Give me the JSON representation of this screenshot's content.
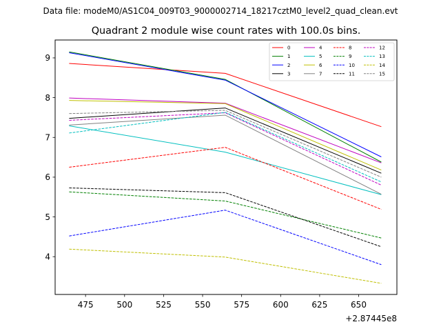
{
  "suptitle": "Data file: modeM0/AS1C04_009T03_9000002714_18217cztM0_level2_quad_clean.evt",
  "chart_data": {
    "type": "line",
    "title": "Quadrant 2 module wise count rates with 100.0s bins.",
    "xlabel": "",
    "ylabel": "",
    "x_offset_label": "+2.87445e8",
    "xlim": [
      455.5,
      674.5
    ],
    "ylim": [
      3.05,
      9.45
    ],
    "x_ticks": [
      475,
      500,
      525,
      550,
      575,
      600,
      625,
      650
    ],
    "y_ticks": [
      4,
      5,
      6,
      7,
      8,
      9
    ],
    "x": [
      464.5,
      564.5,
      664.5
    ],
    "legend_position": "top-right",
    "series": [
      {
        "name": "0",
        "color": "#ff0000",
        "dash": "solid",
        "values": [
          8.86,
          8.61,
          7.27
        ]
      },
      {
        "name": "1",
        "color": "#008000",
        "dash": "solid",
        "values": [
          9.15,
          8.46,
          6.38
        ]
      },
      {
        "name": "2",
        "color": "#0000ff",
        "dash": "solid",
        "values": [
          9.13,
          8.44,
          6.51
        ]
      },
      {
        "name": "3",
        "color": "#000000",
        "dash": "solid",
        "values": [
          7.48,
          7.74,
          6.1
        ]
      },
      {
        "name": "4",
        "color": "#bf00bf",
        "dash": "solid",
        "values": [
          7.99,
          7.86,
          6.36
        ]
      },
      {
        "name": "5",
        "color": "#00bfbf",
        "dash": "solid",
        "values": [
          7.29,
          6.63,
          5.56
        ]
      },
      {
        "name": "6",
        "color": "#bfbf00",
        "dash": "solid",
        "values": [
          7.93,
          7.85,
          6.18
        ]
      },
      {
        "name": "7",
        "color": "#808080",
        "dash": "solid",
        "values": [
          7.31,
          7.56,
          5.57
        ]
      },
      {
        "name": "8",
        "color": "#ff0000",
        "dash": "dashed",
        "values": [
          6.25,
          6.75,
          5.19
        ]
      },
      {
        "name": "9",
        "color": "#008000",
        "dash": "dashed",
        "values": [
          5.63,
          5.4,
          4.47
        ]
      },
      {
        "name": "10",
        "color": "#0000ff",
        "dash": "dashed",
        "values": [
          4.52,
          5.17,
          3.8
        ]
      },
      {
        "name": "11",
        "color": "#000000",
        "dash": "dashed",
        "values": [
          5.73,
          5.61,
          4.25
        ]
      },
      {
        "name": "12",
        "color": "#bf00bf",
        "dash": "dashed",
        "values": [
          7.43,
          7.62,
          5.8
        ]
      },
      {
        "name": "13",
        "color": "#00bfbf",
        "dash": "dashed",
        "values": [
          7.11,
          7.63,
          5.88
        ]
      },
      {
        "name": "14",
        "color": "#bfbf00",
        "dash": "dashed",
        "values": [
          4.19,
          3.99,
          3.33
        ]
      },
      {
        "name": "15",
        "color": "#808080",
        "dash": "dashed",
        "values": [
          7.6,
          7.68,
          6.0
        ]
      }
    ]
  }
}
